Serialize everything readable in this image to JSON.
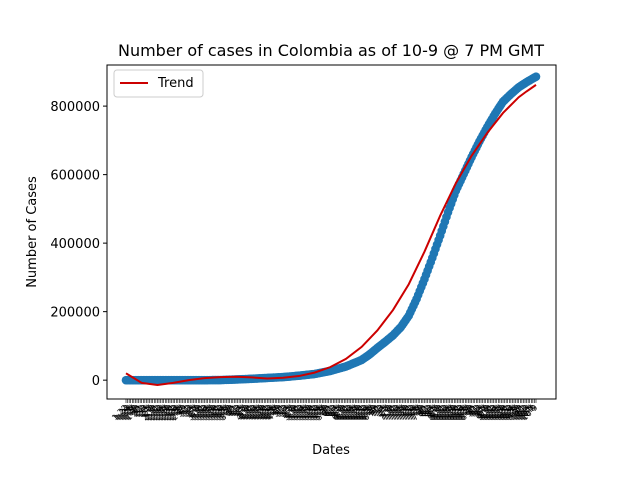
{
  "chart_data": {
    "type": "scatter",
    "title": "Number of cases in Colombia as of 10-9 @ 7 PM GMT",
    "xlabel": "Dates",
    "ylabel": "Number of Cases",
    "ylim": [
      -55000,
      920000
    ],
    "yticks": [
      0,
      200000,
      400000,
      600000,
      800000
    ],
    "ytick_labels": [
      "0",
      "200000",
      "400000",
      "600000",
      "800000"
    ],
    "grid": false,
    "legend": {
      "placement": "upper-left",
      "entries": [
        "Trend"
      ]
    },
    "x_start_date": "2020-01-22",
    "x_end_date": "2020-10-09",
    "x_tick_labels_note": "one rotated date label per day (illegible, overlapping)",
    "series": [
      {
        "kind": "scatter",
        "color": "#1f77b4",
        "x_days": [
          0,
          20,
          40,
          45,
          50,
          60,
          70,
          80,
          90,
          100,
          110,
          120,
          130,
          140,
          150,
          155,
          160,
          165,
          170,
          175,
          180,
          185,
          190,
          195,
          200,
          205,
          210,
          215,
          220,
          225,
          230,
          235,
          240,
          245,
          250,
          255,
          261
        ],
        "values": [
          0,
          0,
          0,
          0,
          0,
          300,
          2000,
          4000,
          6500,
          9000,
          13000,
          18000,
          27000,
          40000,
          59000,
          75000,
          94000,
          112000,
          131000,
          155000,
          188000,
          237000,
          295000,
          357000,
          422000,
          490000,
          553000,
          602000,
          651000,
          697000,
          739000,
          778000,
          813000,
          835000,
          855000,
          870000,
          886000
        ]
      },
      {
        "name": "Trend",
        "kind": "line",
        "color": "#cc0000",
        "x_days": [
          0,
          10,
          20,
          30,
          40,
          50,
          60,
          70,
          80,
          90,
          100,
          110,
          120,
          130,
          140,
          150,
          160,
          170,
          180,
          190,
          200,
          210,
          220,
          230,
          240,
          250,
          255,
          261
        ],
        "values": [
          20000,
          -8000,
          -14000,
          -8000,
          0,
          6000,
          9000,
          10000,
          8000,
          5000,
          7000,
          12000,
          22000,
          38000,
          62000,
          97000,
          145000,
          205000,
          280000,
          375000,
          480000,
          575000,
          655000,
          722000,
          780000,
          826000,
          843000,
          862000
        ]
      }
    ]
  }
}
